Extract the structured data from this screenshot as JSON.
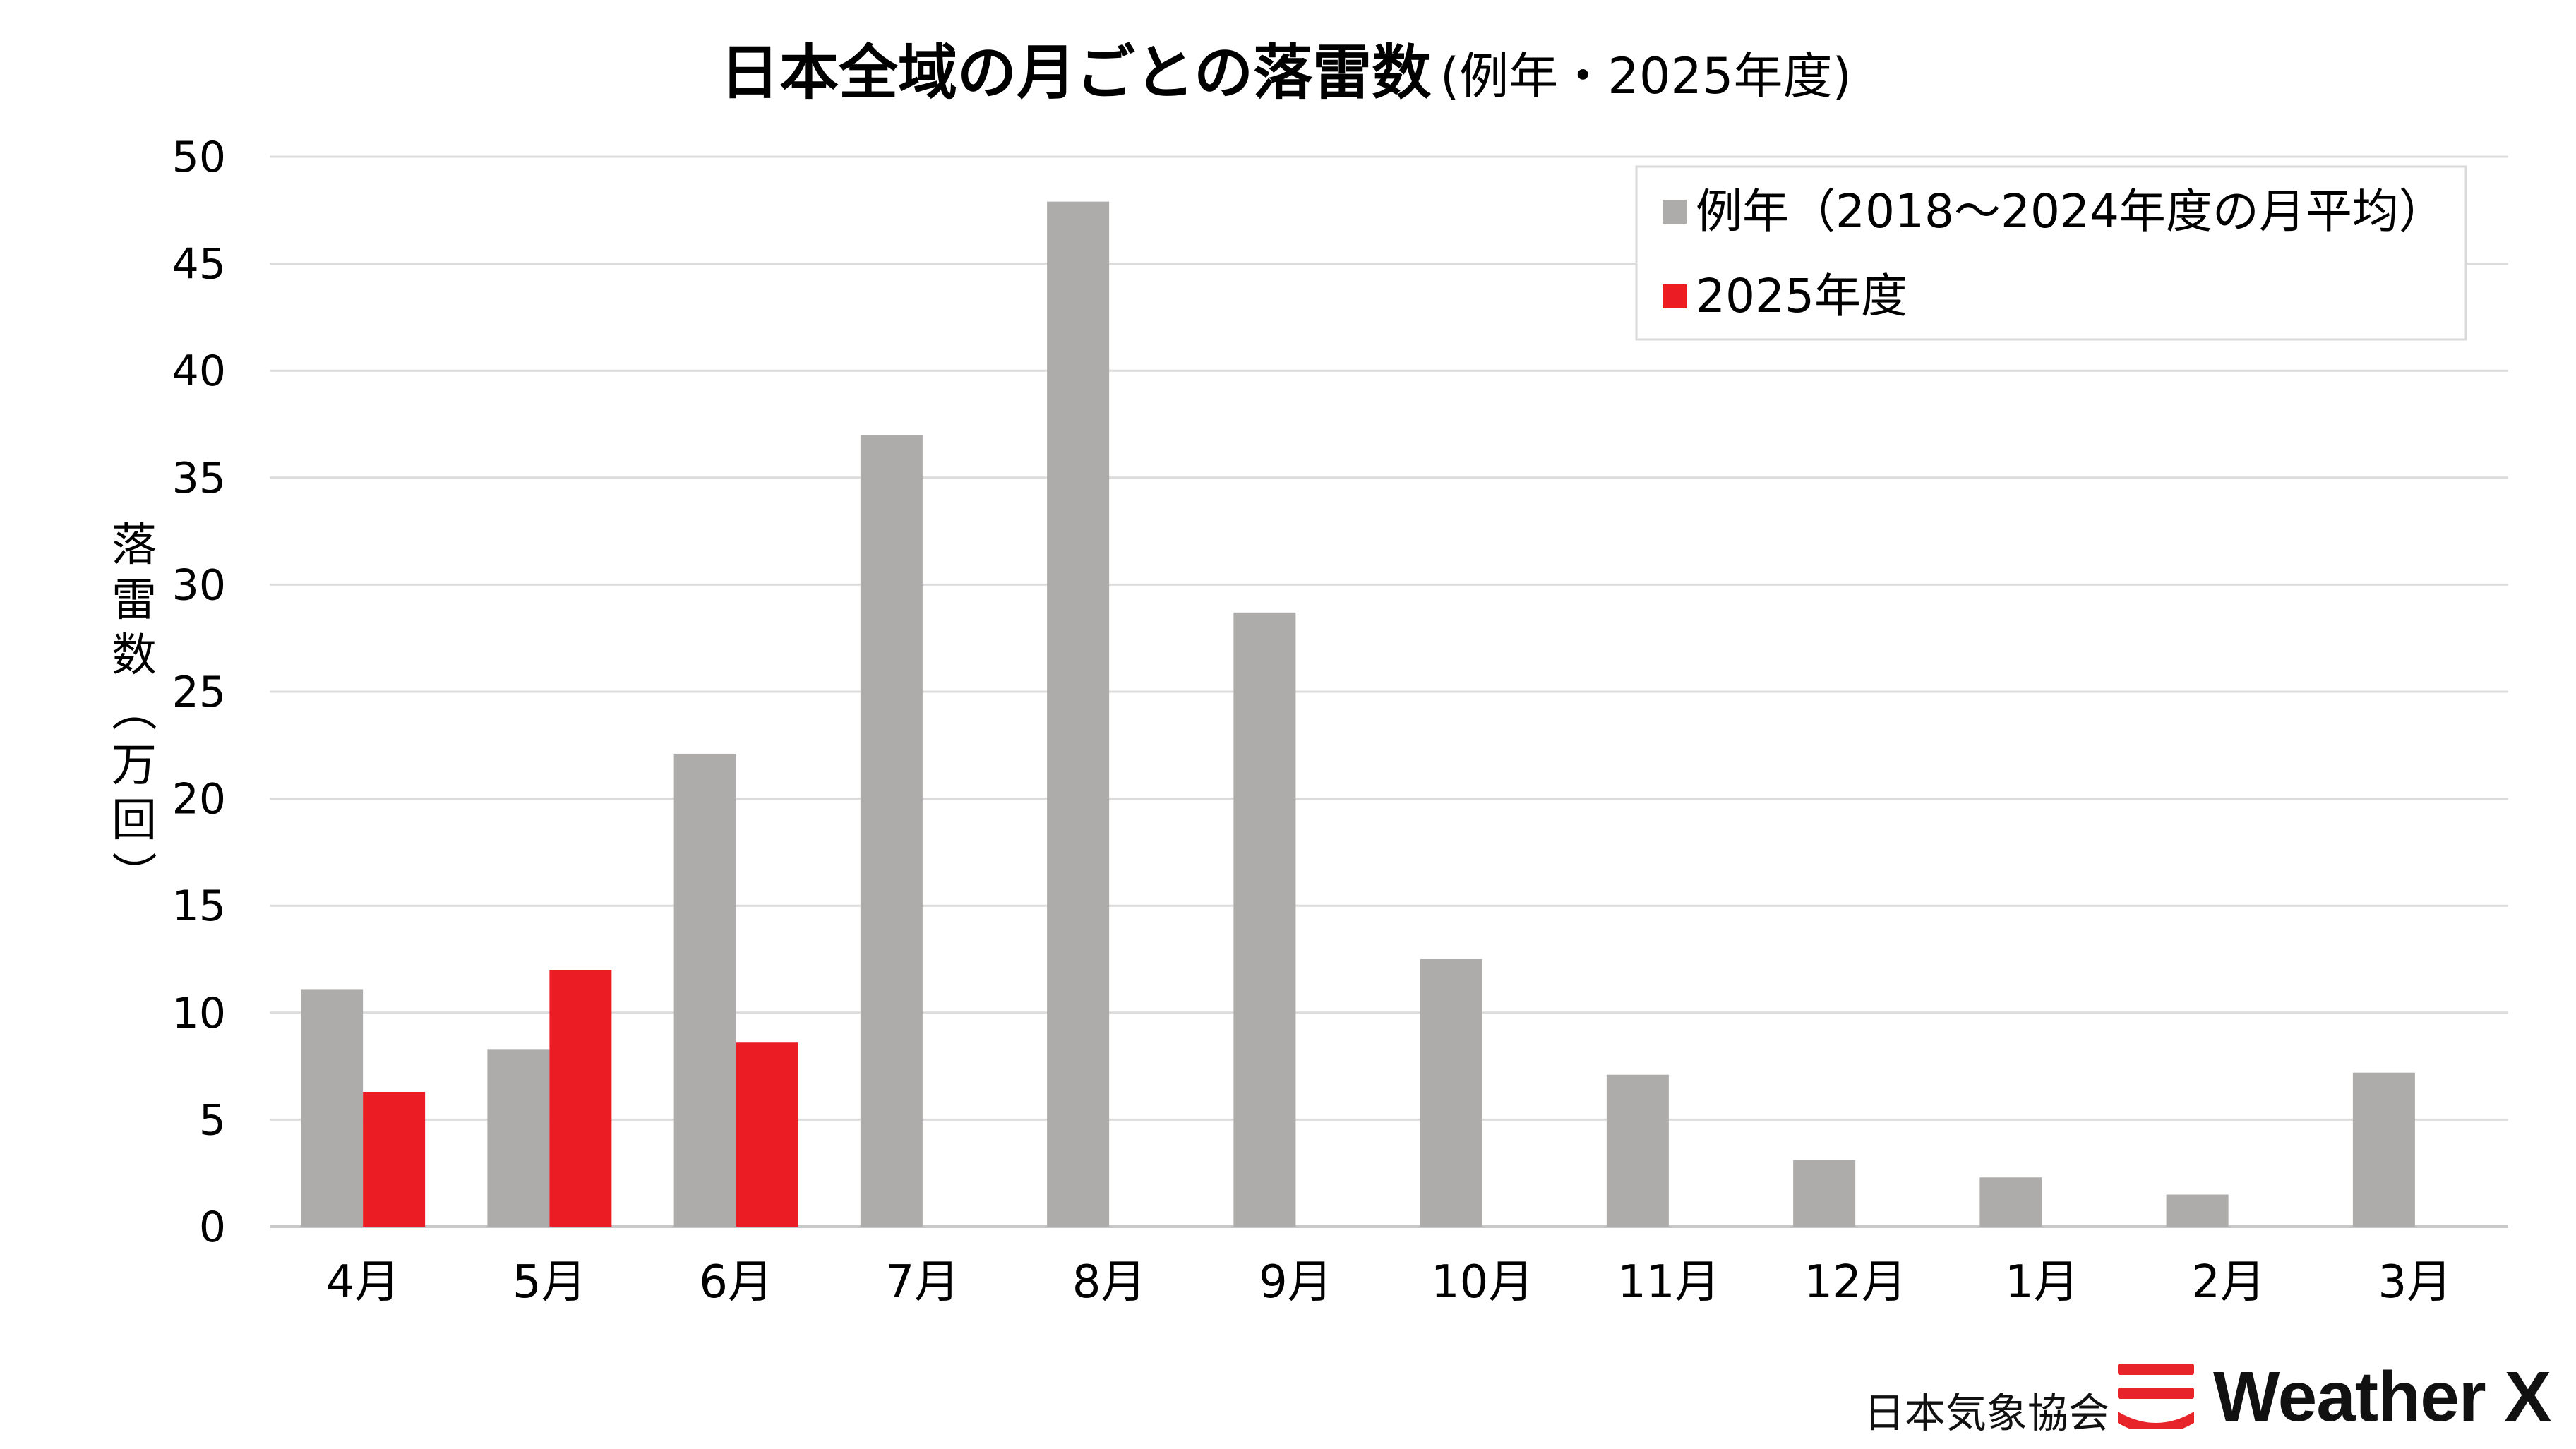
{
  "chart_data": {
    "type": "bar",
    "title": "日本全域の月ごとの落雷数",
    "subtitle": "(例年・2025年度)",
    "ylabel": "落雷数（万回）",
    "ylim": [
      0,
      50
    ],
    "yticks": [
      0,
      5,
      10,
      15,
      20,
      25,
      30,
      35,
      40,
      45,
      50
    ],
    "grid": true,
    "legend_position": "top-right",
    "categories": [
      "4月",
      "5月",
      "6月",
      "7月",
      "8月",
      "9月",
      "10月",
      "11月",
      "12月",
      "1月",
      "2月",
      "3月"
    ],
    "series": [
      {
        "name": "例年（2018～2024年度の月平均）",
        "color": "#aeabab",
        "values": [
          11.1,
          8.3,
          22.1,
          37.0,
          47.9,
          28.7,
          12.5,
          7.1,
          3.1,
          2.3,
          1.5,
          7.2
        ]
      },
      {
        "name": "2025年度",
        "color": "#ec1c24",
        "values": [
          6.3,
          12.0,
          8.6,
          null,
          null,
          null,
          null,
          null,
          null,
          null,
          null,
          null
        ]
      }
    ]
  },
  "footer": {
    "org": "日本気象協会",
    "brand": "Weather X",
    "brand_color": "#e8242b"
  }
}
